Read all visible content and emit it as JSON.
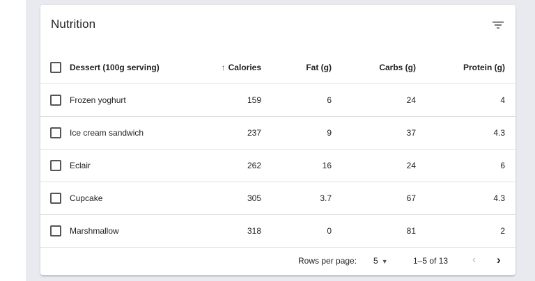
{
  "toolbar": {
    "title": "Nutrition",
    "filter_icon": "filter-list-icon"
  },
  "table": {
    "headers": {
      "name": "Dessert (100g serving)",
      "calories": "Calories",
      "fat": "Fat (g)",
      "carbs": "Carbs (g)",
      "protein": "Protein (g)",
      "sort_icon": "arrow-upward-icon"
    },
    "rows": [
      {
        "name": "Frozen yoghurt",
        "calories": "159",
        "fat": "6",
        "carbs": "24",
        "protein": "4"
      },
      {
        "name": "Ice cream sandwich",
        "calories": "237",
        "fat": "9",
        "carbs": "37",
        "protein": "4.3"
      },
      {
        "name": "Eclair",
        "calories": "262",
        "fat": "16",
        "carbs": "24",
        "protein": "6"
      },
      {
        "name": "Cupcake",
        "calories": "305",
        "fat": "3.7",
        "carbs": "67",
        "protein": "4.3"
      },
      {
        "name": "Marshmallow",
        "calories": "318",
        "fat": "0",
        "carbs": "81",
        "protein": "2"
      }
    ]
  },
  "pagination": {
    "rows_per_page_label": "Rows per page:",
    "rows_per_page_value": "5",
    "range": "1–5 of 13",
    "prev_icon": "chevron-left-icon",
    "next_icon": "chevron-right-icon"
  },
  "colors": {
    "background": "#e8eaf0",
    "surface": "#ffffff",
    "divider": "#e0e0e0",
    "text": "#212121"
  }
}
